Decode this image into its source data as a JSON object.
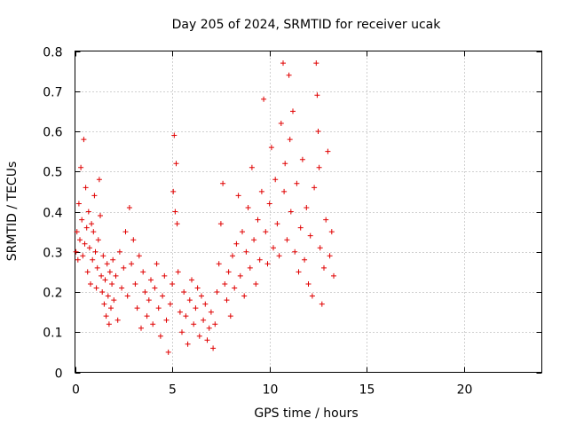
{
  "chart_data": {
    "type": "scatter",
    "title": "Day 205 of 2024, SRMTID for receiver ucak",
    "xlabel": "GPS time / hours",
    "ylabel": "SRMTID / TECUs",
    "xlim": [
      0,
      24
    ],
    "ylim": [
      0,
      0.8
    ],
    "xticks": [
      0,
      5,
      10,
      15,
      20
    ],
    "xtick_labels": [
      "0",
      "5",
      "10",
      "15",
      "20"
    ],
    "yticks": [
      0,
      0.1,
      0.2,
      0.3,
      0.4,
      0.5,
      0.6,
      0.7,
      0.8
    ],
    "ytick_labels": [
      "0",
      "0.1",
      "0.2",
      "0.3",
      "0.4",
      "0.5",
      "0.6",
      "0.7",
      "0.8"
    ],
    "grid": true,
    "marker": "+",
    "color": "#e00000",
    "series": [
      {
        "name": "SRMTID",
        "points": [
          [
            0.05,
            0.3
          ],
          [
            0.1,
            0.35
          ],
          [
            0.15,
            0.28
          ],
          [
            0.2,
            0.42
          ],
          [
            0.25,
            0.33
          ],
          [
            0.3,
            0.51
          ],
          [
            0.35,
            0.38
          ],
          [
            0.4,
            0.29
          ],
          [
            0.45,
            0.58
          ],
          [
            0.5,
            0.32
          ],
          [
            0.55,
            0.46
          ],
          [
            0.6,
            0.36
          ],
          [
            0.65,
            0.25
          ],
          [
            0.7,
            0.4
          ],
          [
            0.75,
            0.31
          ],
          [
            0.8,
            0.22
          ],
          [
            0.85,
            0.37
          ],
          [
            0.9,
            0.28
          ],
          [
            0.95,
            0.35
          ],
          [
            1.0,
            0.44
          ],
          [
            1.05,
            0.3
          ],
          [
            1.1,
            0.21
          ],
          [
            1.15,
            0.26
          ],
          [
            1.2,
            0.33
          ],
          [
            1.25,
            0.48
          ],
          [
            1.3,
            0.39
          ],
          [
            1.35,
            0.24
          ],
          [
            1.4,
            0.2
          ],
          [
            1.45,
            0.29
          ],
          [
            1.5,
            0.17
          ],
          [
            1.55,
            0.23
          ],
          [
            1.6,
            0.14
          ],
          [
            1.65,
            0.27
          ],
          [
            1.7,
            0.19
          ],
          [
            1.75,
            0.12
          ],
          [
            1.8,
            0.25
          ],
          [
            1.85,
            0.16
          ],
          [
            1.9,
            0.22
          ],
          [
            1.95,
            0.28
          ],
          [
            2.0,
            0.18
          ],
          [
            2.1,
            0.24
          ],
          [
            2.2,
            0.13
          ],
          [
            2.3,
            0.3
          ],
          [
            2.4,
            0.21
          ],
          [
            2.5,
            0.26
          ],
          [
            2.6,
            0.35
          ],
          [
            2.7,
            0.19
          ],
          [
            2.8,
            0.41
          ],
          [
            2.9,
            0.27
          ],
          [
            3.0,
            0.33
          ],
          [
            3.1,
            0.22
          ],
          [
            3.2,
            0.16
          ],
          [
            3.3,
            0.29
          ],
          [
            3.4,
            0.11
          ],
          [
            3.5,
            0.25
          ],
          [
            3.6,
            0.2
          ],
          [
            3.7,
            0.14
          ],
          [
            3.8,
            0.18
          ],
          [
            3.9,
            0.23
          ],
          [
            4.0,
            0.12
          ],
          [
            4.1,
            0.21
          ],
          [
            4.2,
            0.27
          ],
          [
            4.3,
            0.16
          ],
          [
            4.4,
            0.09
          ],
          [
            4.5,
            0.19
          ],
          [
            4.6,
            0.24
          ],
          [
            4.7,
            0.13
          ],
          [
            4.8,
            0.05
          ],
          [
            4.9,
            0.17
          ],
          [
            5.0,
            0.22
          ],
          [
            5.05,
            0.45
          ],
          [
            5.1,
            0.59
          ],
          [
            5.15,
            0.4
          ],
          [
            5.2,
            0.52
          ],
          [
            5.25,
            0.37
          ],
          [
            5.3,
            0.25
          ],
          [
            5.4,
            0.15
          ],
          [
            5.5,
            0.1
          ],
          [
            5.6,
            0.2
          ],
          [
            5.7,
            0.14
          ],
          [
            5.8,
            0.07
          ],
          [
            5.9,
            0.18
          ],
          [
            6.0,
            0.23
          ],
          [
            6.1,
            0.12
          ],
          [
            6.2,
            0.16
          ],
          [
            6.3,
            0.21
          ],
          [
            6.4,
            0.09
          ],
          [
            6.5,
            0.19
          ],
          [
            6.6,
            0.13
          ],
          [
            6.7,
            0.17
          ],
          [
            6.8,
            0.08
          ],
          [
            6.9,
            0.11
          ],
          [
            7.0,
            0.15
          ],
          [
            7.1,
            0.06
          ],
          [
            7.2,
            0.12
          ],
          [
            7.3,
            0.2
          ],
          [
            7.4,
            0.27
          ],
          [
            7.5,
            0.37
          ],
          [
            7.6,
            0.47
          ],
          [
            7.7,
            0.22
          ],
          [
            7.8,
            0.18
          ],
          [
            7.9,
            0.25
          ],
          [
            8.0,
            0.14
          ],
          [
            8.1,
            0.29
          ],
          [
            8.2,
            0.21
          ],
          [
            8.3,
            0.32
          ],
          [
            8.4,
            0.44
          ],
          [
            8.5,
            0.24
          ],
          [
            8.6,
            0.35
          ],
          [
            8.7,
            0.19
          ],
          [
            8.8,
            0.3
          ],
          [
            8.9,
            0.41
          ],
          [
            9.0,
            0.26
          ],
          [
            9.1,
            0.51
          ],
          [
            9.2,
            0.33
          ],
          [
            9.3,
            0.22
          ],
          [
            9.4,
            0.38
          ],
          [
            9.5,
            0.28
          ],
          [
            9.6,
            0.45
          ],
          [
            9.7,
            0.68
          ],
          [
            9.8,
            0.35
          ],
          [
            9.9,
            0.27
          ],
          [
            10.0,
            0.42
          ],
          [
            10.1,
            0.56
          ],
          [
            10.2,
            0.31
          ],
          [
            10.3,
            0.48
          ],
          [
            10.4,
            0.37
          ],
          [
            10.5,
            0.29
          ],
          [
            10.6,
            0.62
          ],
          [
            10.7,
            0.77
          ],
          [
            10.75,
            0.45
          ],
          [
            10.8,
            0.52
          ],
          [
            10.9,
            0.33
          ],
          [
            11.0,
            0.74
          ],
          [
            11.05,
            0.58
          ],
          [
            11.1,
            0.4
          ],
          [
            11.2,
            0.65
          ],
          [
            11.3,
            0.3
          ],
          [
            11.4,
            0.47
          ],
          [
            11.5,
            0.25
          ],
          [
            11.6,
            0.36
          ],
          [
            11.7,
            0.53
          ],
          [
            11.8,
            0.28
          ],
          [
            11.9,
            0.41
          ],
          [
            12.0,
            0.22
          ],
          [
            12.1,
            0.34
          ],
          [
            12.2,
            0.19
          ],
          [
            12.3,
            0.46
          ],
          [
            12.4,
            0.77
          ],
          [
            12.45,
            0.69
          ],
          [
            12.5,
            0.6
          ],
          [
            12.55,
            0.51
          ],
          [
            12.6,
            0.31
          ],
          [
            12.7,
            0.17
          ],
          [
            12.8,
            0.26
          ],
          [
            12.9,
            0.38
          ],
          [
            13.0,
            0.55
          ],
          [
            13.1,
            0.29
          ],
          [
            13.2,
            0.35
          ],
          [
            13.3,
            0.24
          ]
        ]
      }
    ]
  }
}
